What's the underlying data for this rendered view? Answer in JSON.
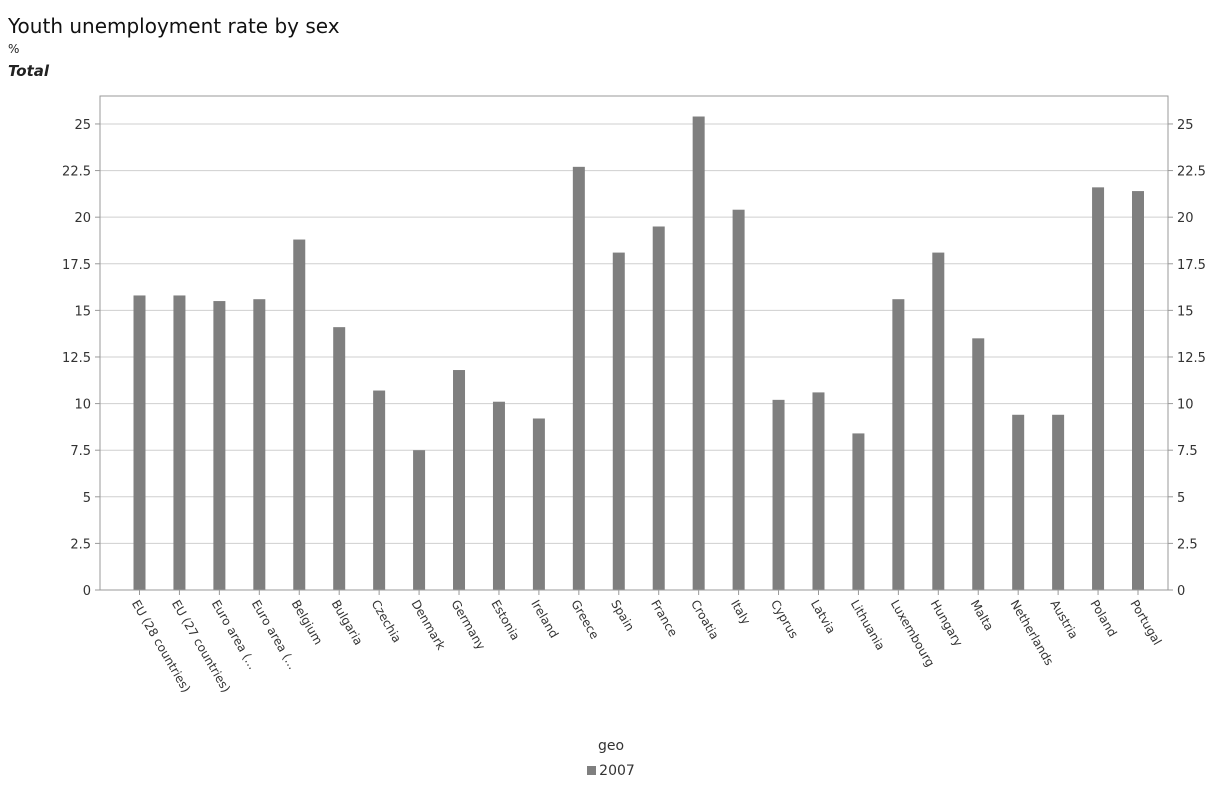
{
  "title": "Youth unemployment rate by sex",
  "unit": "%",
  "subtitle": "Total",
  "chart_data": {
    "type": "bar",
    "categories": [
      "EU (28 countries)",
      "EU (27 countries)",
      "Euro area (...",
      "Euro area (...",
      "Belgium",
      "Bulgaria",
      "Czechia",
      "Denmark",
      "Germany",
      "Estonia",
      "Ireland",
      "Greece",
      "Spain",
      "France",
      "Croatia",
      "Italy",
      "Cyprus",
      "Latvia",
      "Lithuania",
      "Luxembourg",
      "Hungary",
      "Malta",
      "Netherlands",
      "Austria",
      "Poland",
      "Portugal"
    ],
    "series": [
      {
        "name": "2007",
        "values": [
          15.8,
          15.8,
          15.5,
          15.6,
          18.8,
          14.1,
          10.7,
          7.5,
          11.8,
          10.1,
          9.2,
          22.7,
          18.1,
          19.5,
          25.4,
          20.4,
          10.2,
          10.6,
          8.4,
          15.6,
          18.1,
          13.5,
          9.4,
          9.4,
          21.6,
          21.4
        ]
      }
    ],
    "xlabel": "geo",
    "ylabel": "",
    "ylim": [
      0,
      26.5
    ],
    "yticks": [
      "0",
      "2.5",
      "5",
      "7.5",
      "10",
      "12.5",
      "15",
      "17.5",
      "20",
      "22.5",
      "25"
    ],
    "grid": true,
    "legend": "bottom",
    "bar_color": "#7f7f7f"
  }
}
